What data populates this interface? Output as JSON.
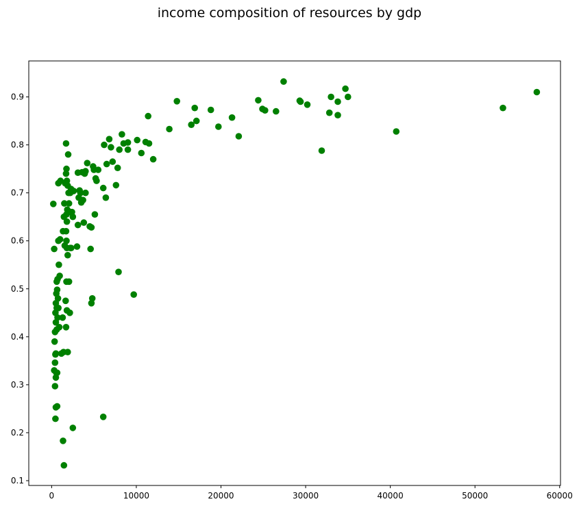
{
  "chart_data": {
    "type": "scatter",
    "title": "income composition of resources by gdp",
    "xlabel": "",
    "ylabel": "",
    "xlim": [
      -2700,
      60100
    ],
    "ylim": [
      0.09,
      0.975
    ],
    "grid": false,
    "colors": {
      "marker": "#008000"
    },
    "x_ticks": [
      {
        "value": 0,
        "label": "0"
      },
      {
        "value": 10000,
        "label": "10000"
      },
      {
        "value": 20000,
        "label": "20000"
      },
      {
        "value": 30000,
        "label": "30000"
      },
      {
        "value": 40000,
        "label": "40000"
      },
      {
        "value": 50000,
        "label": "50000"
      },
      {
        "value": 60000,
        "label": "60000"
      }
    ],
    "y_ticks": [
      {
        "value": 0.1,
        "label": "0.1"
      },
      {
        "value": 0.2,
        "label": "0.2"
      },
      {
        "value": 0.3,
        "label": "0.3"
      },
      {
        "value": 0.4,
        "label": "0.4"
      },
      {
        "value": 0.5,
        "label": "0.5"
      },
      {
        "value": 0.6,
        "label": "0.6"
      },
      {
        "value": 0.7,
        "label": "0.7"
      },
      {
        "value": 0.8,
        "label": "0.8"
      },
      {
        "value": 0.9,
        "label": "0.9"
      }
    ],
    "points": [
      [
        200,
        0.677
      ],
      [
        300,
        0.583
      ],
      [
        350,
        0.39
      ],
      [
        300,
        0.33
      ],
      [
        400,
        0.346
      ],
      [
        450,
        0.363
      ],
      [
        400,
        0.41
      ],
      [
        500,
        0.43
      ],
      [
        450,
        0.45
      ],
      [
        600,
        0.46
      ],
      [
        500,
        0.47
      ],
      [
        550,
        0.49
      ],
      [
        600,
        0.515
      ],
      [
        700,
        0.52
      ],
      [
        650,
        0.498
      ],
      [
        750,
        0.48
      ],
      [
        800,
        0.46
      ],
      [
        700,
        0.44
      ],
      [
        600,
        0.415
      ],
      [
        500,
        0.365
      ],
      [
        550,
        0.325
      ],
      [
        500,
        0.315
      ],
      [
        400,
        0.297
      ],
      [
        500,
        0.253
      ],
      [
        650,
        0.255
      ],
      [
        450,
        0.229
      ],
      [
        650,
        0.325
      ],
      [
        900,
        0.42
      ],
      [
        850,
        0.55
      ],
      [
        950,
        0.527
      ],
      [
        800,
        0.6
      ],
      [
        1000,
        0.603
      ],
      [
        800,
        0.72
      ],
      [
        1050,
        0.725
      ],
      [
        1300,
        0.44
      ],
      [
        1150,
        0.365
      ],
      [
        1400,
        0.368
      ],
      [
        1350,
        0.183
      ],
      [
        1450,
        0.132
      ],
      [
        1350,
        0.62
      ],
      [
        1450,
        0.65
      ],
      [
        1550,
        0.59
      ],
      [
        1500,
        0.678
      ],
      [
        1600,
        0.72
      ],
      [
        1700,
        0.74
      ],
      [
        1750,
        0.75
      ],
      [
        1800,
        0.725
      ],
      [
        1700,
        0.803
      ],
      [
        1950,
        0.78
      ],
      [
        1900,
        0.715
      ],
      [
        1850,
        0.665
      ],
      [
        1750,
        0.655
      ],
      [
        1800,
        0.64
      ],
      [
        1700,
        0.62
      ],
      [
        1750,
        0.6
      ],
      [
        1800,
        0.585
      ],
      [
        1900,
        0.57
      ],
      [
        1750,
        0.515
      ],
      [
        1650,
        0.475
      ],
      [
        1800,
        0.455
      ],
      [
        1700,
        0.42
      ],
      [
        1900,
        0.368
      ],
      [
        2050,
        0.515
      ],
      [
        2150,
        0.45
      ],
      [
        2200,
        0.585
      ],
      [
        2300,
        0.585
      ],
      [
        2200,
        0.66
      ],
      [
        2400,
        0.66
      ],
      [
        2500,
        0.65
      ],
      [
        2200,
        0.7
      ],
      [
        2300,
        0.708
      ],
      [
        2050,
        0.678
      ],
      [
        2000,
        0.7
      ],
      [
        2600,
        0.704
      ],
      [
        2500,
        0.21
      ],
      [
        3000,
        0.588
      ],
      [
        3100,
        0.633
      ],
      [
        3200,
        0.69
      ],
      [
        3300,
        0.705
      ],
      [
        3400,
        0.7
      ],
      [
        3500,
        0.68
      ],
      [
        3100,
        0.742
      ],
      [
        3600,
        0.743
      ],
      [
        3700,
        0.685
      ],
      [
        3800,
        0.638
      ],
      [
        3900,
        0.74
      ],
      [
        4000,
        0.745
      ],
      [
        4000,
        0.7
      ],
      [
        4200,
        0.762
      ],
      [
        4500,
        0.63
      ],
      [
        4700,
        0.628
      ],
      [
        4600,
        0.583
      ],
      [
        4700,
        0.47
      ],
      [
        4800,
        0.48
      ],
      [
        4900,
        0.755
      ],
      [
        5000,
        0.748
      ],
      [
        5100,
        0.655
      ],
      [
        5200,
        0.73
      ],
      [
        5300,
        0.725
      ],
      [
        5500,
        0.748
      ],
      [
        6100,
        0.71
      ],
      [
        6100,
        0.233
      ],
      [
        6200,
        0.8
      ],
      [
        6500,
        0.76
      ],
      [
        6400,
        0.69
      ],
      [
        6800,
        0.812
      ],
      [
        7000,
        0.795
      ],
      [
        7200,
        0.765
      ],
      [
        7600,
        0.716
      ],
      [
        7800,
        0.752
      ],
      [
        8000,
        0.79
      ],
      [
        7900,
        0.535
      ],
      [
        8300,
        0.822
      ],
      [
        8500,
        0.803
      ],
      [
        9000,
        0.805
      ],
      [
        9000,
        0.79
      ],
      [
        9700,
        0.488
      ],
      [
        10100,
        0.81
      ],
      [
        10600,
        0.783
      ],
      [
        11100,
        0.806
      ],
      [
        11400,
        0.86
      ],
      [
        11500,
        0.803
      ],
      [
        12000,
        0.77
      ],
      [
        13900,
        0.833
      ],
      [
        14800,
        0.891
      ],
      [
        16500,
        0.842
      ],
      [
        16900,
        0.877
      ],
      [
        17100,
        0.85
      ],
      [
        18800,
        0.873
      ],
      [
        19700,
        0.838
      ],
      [
        21300,
        0.857
      ],
      [
        22100,
        0.818
      ],
      [
        24400,
        0.893
      ],
      [
        24900,
        0.875
      ],
      [
        25200,
        0.872
      ],
      [
        26500,
        0.87
      ],
      [
        27400,
        0.932
      ],
      [
        29300,
        0.892
      ],
      [
        29400,
        0.89
      ],
      [
        30200,
        0.884
      ],
      [
        31900,
        0.788
      ],
      [
        32800,
        0.867
      ],
      [
        33000,
        0.9
      ],
      [
        33800,
        0.862
      ],
      [
        33800,
        0.89
      ],
      [
        34700,
        0.917
      ],
      [
        35000,
        0.9
      ],
      [
        40700,
        0.828
      ],
      [
        53300,
        0.877
      ],
      [
        57300,
        0.91
      ]
    ]
  }
}
